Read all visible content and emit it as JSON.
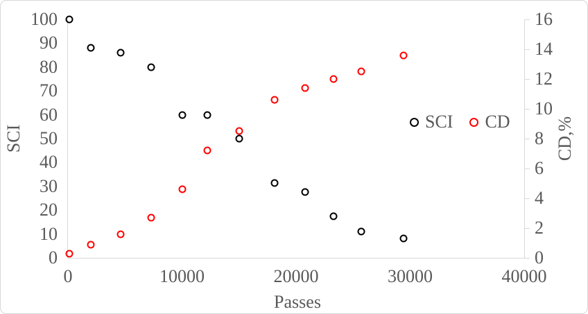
{
  "chart_data": {
    "type": "scatter",
    "title": "",
    "xlabel": "Passes",
    "ylabel_left": "SCI",
    "ylabel_right": "CD,%",
    "xlim": [
      0,
      40000
    ],
    "ylim_left": [
      0,
      100
    ],
    "ylim_right": [
      0,
      16
    ],
    "xticks": [
      0,
      10000,
      20000,
      30000,
      40000
    ],
    "yticks_left": [
      0,
      10,
      20,
      30,
      40,
      50,
      60,
      70,
      80,
      90,
      100
    ],
    "yticks_right": [
      0,
      2,
      4,
      6,
      8,
      10,
      12,
      14,
      16
    ],
    "grid": false,
    "legend_position": "inside-middle-right",
    "x": [
      100,
      2000,
      4600,
      7300,
      10000,
      12200,
      15000,
      18100,
      20800,
      23300,
      25700,
      29400
    ],
    "series": [
      {
        "name": "SCI",
        "axis": "left",
        "marker": "open-circle",
        "color": "#000000",
        "values": [
          100,
          88,
          86,
          80,
          60,
          60,
          50,
          31.5,
          27.5,
          17.5,
          11,
          8
        ]
      },
      {
        "name": "CD",
        "axis": "right",
        "marker": "open-circle",
        "color": "#ff0000",
        "values": [
          0.3,
          0.9,
          1.6,
          2.7,
          4.6,
          7.2,
          8.5,
          10.6,
          11.4,
          12.0,
          12.5,
          13.6
        ]
      }
    ],
    "legend": [
      {
        "label": "SCI",
        "color": "#000000"
      },
      {
        "label": "CD",
        "color": "#ff0000"
      }
    ]
  },
  "styles": {
    "text_color": "#595959",
    "axis_color": "#d9d9d9",
    "background": "#ffffff"
  }
}
